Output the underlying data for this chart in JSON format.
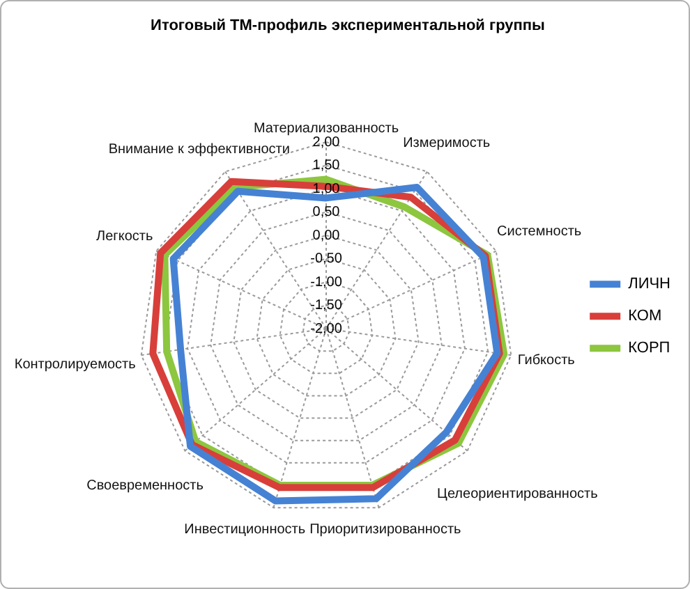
{
  "chart_data": {
    "type": "radar",
    "title": "Итоговый ТМ-профиль экспериментальной группы",
    "categories": [
      "Материализованность",
      "Измеримость",
      "Системность",
      "Гибкость",
      "Целеориентированность",
      "Приоритизированность",
      "Инвестиционность",
      "Своевременность",
      "Контролируемость",
      "Легкость",
      "Внимание к эффективности"
    ],
    "series": [
      {
        "name": "ЛИЧН",
        "color": "#4682d4",
        "values": [
          0.8,
          1.6,
          1.7,
          1.7,
          1.4,
          1.8,
          1.85,
          1.85,
          1.15,
          1.6,
          1.5
        ]
      },
      {
        "name": "КОМ",
        "color": "#d83f3a",
        "values": [
          1.05,
          1.35,
          1.75,
          1.75,
          1.65,
          1.55,
          1.55,
          1.8,
          1.75,
          1.9,
          1.75
        ]
      },
      {
        "name": "КОРП",
        "color": "#8dc63f",
        "values": [
          1.2,
          1.1,
          1.8,
          1.85,
          1.75,
          1.5,
          1.5,
          1.7,
          1.45,
          1.8,
          1.6
        ]
      }
    ],
    "ylim": [
      -2,
      2
    ],
    "yticks": [
      {
        "value": -2,
        "label": "-2,00"
      },
      {
        "value": -1.5,
        "label": "-1,50"
      },
      {
        "value": -1,
        "label": "-1,00"
      },
      {
        "value": -0.5,
        "label": "-0,50"
      },
      {
        "value": 0,
        "label": "0,00"
      },
      {
        "value": 0.5,
        "label": "0,50"
      },
      {
        "value": 1,
        "label": "1,00"
      },
      {
        "value": 1.5,
        "label": "1,50"
      },
      {
        "value": 2,
        "label": "2,00"
      }
    ],
    "grid": true,
    "legend": "right",
    "marker": "none",
    "line_style": "solid"
  }
}
